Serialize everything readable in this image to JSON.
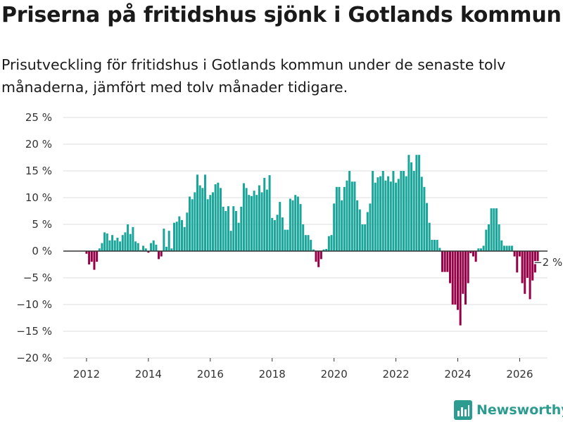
{
  "header": {
    "title": "Priserna på fritidshus sjönk i Gotlands kommun",
    "subtitle": "Prisutveckling för fritidshus i Gotlands kommun under de senaste tolv månaderna, jämfört med tolv månader tidigare."
  },
  "footer": {
    "brand": "Newsworthy"
  },
  "colors": {
    "positive": "#1aa59a",
    "negative": "#960047",
    "zero_line": "#333333",
    "grid": "#dddddd",
    "brand": "#2b9c8f"
  },
  "chart_data": {
    "type": "bar",
    "title": "Priserna på fritidshus sjönk i Gotlands kommun",
    "xlabel": "",
    "ylabel": "",
    "ylim": [
      -20,
      25
    ],
    "xlim": [
      2011.25,
      2026.9
    ],
    "y_ticks": [
      -20,
      -15,
      -10,
      -5,
      0,
      5,
      10,
      15,
      20,
      25
    ],
    "y_tick_labels": [
      "−20 %",
      "−15 %",
      "−10 %",
      "−5 %",
      "0 %",
      "5 %",
      "10 %",
      "15 %",
      "20 %",
      "25 %"
    ],
    "x_ticks": [
      2012,
      2014,
      2016,
      2018,
      2020,
      2022,
      2024,
      2026
    ],
    "x_tick_labels": [
      "2012",
      "2014",
      "2016",
      "2018",
      "2020",
      "2022",
      "2024",
      "2026"
    ],
    "grid": true,
    "start": {
      "year": 2012,
      "month": 1
    },
    "interval_months": 1,
    "series": [
      {
        "name": "Prisutveckling (%)",
        "values": [
          -0.5,
          -2.5,
          -2.0,
          -3.5,
          -2.0,
          0.5,
          1.5,
          3.5,
          3.3,
          2.0,
          3.0,
          2.0,
          2.5,
          1.8,
          3.0,
          3.5,
          5.0,
          3.2,
          4.5,
          1.8,
          1.5,
          0.2,
          1.0,
          0.5,
          -0.3,
          1.5,
          2.0,
          1.2,
          -1.5,
          -1.0,
          4.2,
          0.8,
          3.8,
          0.5,
          5.3,
          5.5,
          6.5,
          5.8,
          4.5,
          7.2,
          10.2,
          9.7,
          11.0,
          14.3,
          12.3,
          11.8,
          14.3,
          9.7,
          10.5,
          11.0,
          12.5,
          12.8,
          11.8,
          8.3,
          7.5,
          8.4,
          3.8,
          8.4,
          7.5,
          5.3,
          8.3,
          12.7,
          11.8,
          10.5,
          10.3,
          11.3,
          10.5,
          12.3,
          11.0,
          13.7,
          11.5,
          14.2,
          6.2,
          5.8,
          6.8,
          9.2,
          6.3,
          4.0,
          4.0,
          9.8,
          9.5,
          10.5,
          10.2,
          8.8,
          5.0,
          3.0,
          3.0,
          2.1,
          0.3,
          -2.0,
          -3.0,
          -1.5,
          0.3,
          0.4,
          2.8,
          3.0,
          8.9,
          12.0,
          12.0,
          9.5,
          12.0,
          13.2,
          15.0,
          13.0,
          13.0,
          9.5,
          7.8,
          5.0,
          5.0,
          7.3,
          8.9,
          15.0,
          12.8,
          13.8,
          14.0,
          15.0,
          13.2,
          14.0,
          13.0,
          15.0,
          12.8,
          13.5,
          15.0,
          15.0,
          14.0,
          18.0,
          16.6,
          15.0,
          18.0,
          18.0,
          13.9,
          12.0,
          9.0,
          5.3,
          2.1,
          2.1,
          2.1,
          0.6,
          -3.9,
          -3.9,
          -3.9,
          -6.0,
          -10.0,
          -10.0,
          -11.0,
          -13.9,
          -8.0,
          -10.0,
          -6.0,
          -0.4,
          -1.0,
          -2.0,
          0.5,
          0.5,
          1.0,
          4.0,
          5.0,
          8.0,
          8.0,
          8.0,
          5.0,
          2.0,
          1.0,
          1.0,
          1.0,
          1.0,
          -1.0,
          -4.0,
          -1.0,
          -6.0,
          -8.0,
          -5.0,
          -9.0,
          -5.5,
          -4.0,
          -2.0
        ]
      }
    ],
    "annotations": [
      {
        "label": "−2 %",
        "value": -2,
        "target": "last"
      }
    ]
  }
}
